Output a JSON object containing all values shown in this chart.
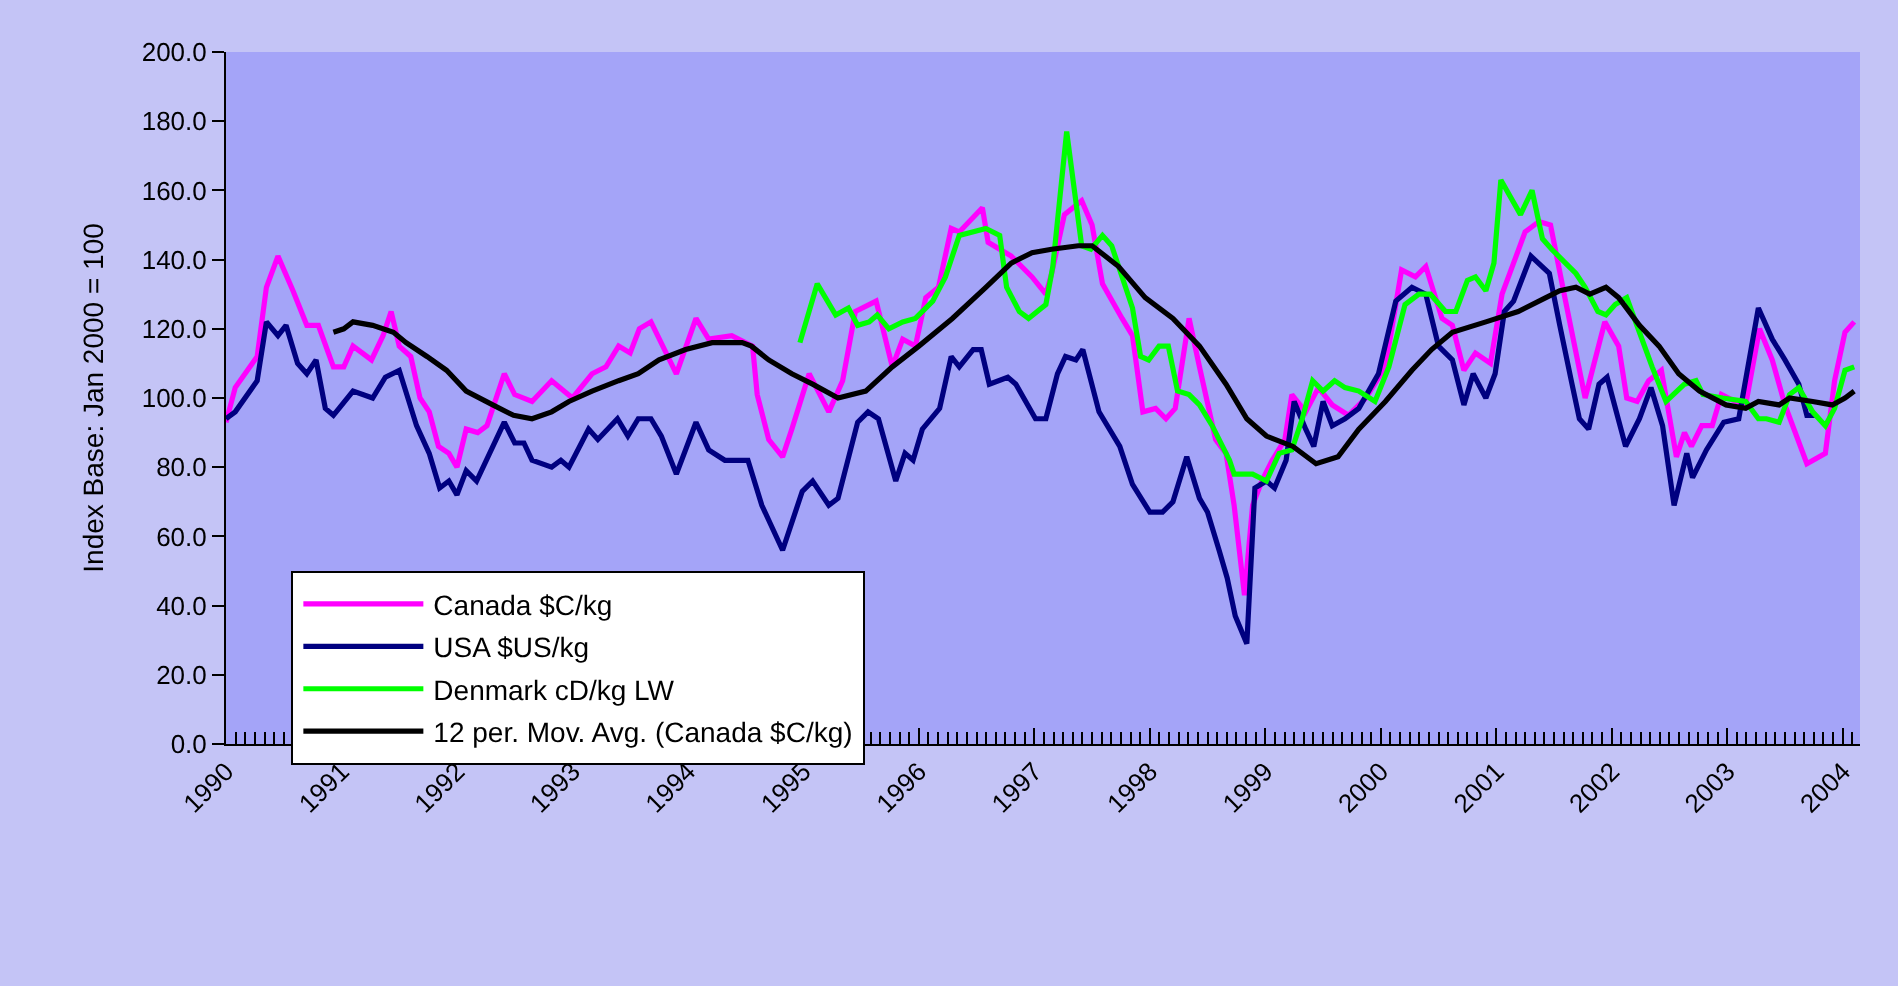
{
  "chart_data": {
    "type": "line",
    "ylabel": "Index Base: Jan 2000 = 100",
    "xlim": [
      1990,
      2004.15
    ],
    "xticks": [
      1990,
      1991,
      1992,
      1993,
      1994,
      1995,
      1996,
      1997,
      1998,
      1999,
      2000,
      2001,
      2002,
      2003,
      2004
    ],
    "ylim": [
      0,
      200
    ],
    "yticks": [
      {
        "value": 0,
        "label": "0.0"
      },
      {
        "value": 20,
        "label": "20.0"
      },
      {
        "value": 40,
        "label": "40.0"
      },
      {
        "value": 60,
        "label": "60.0"
      },
      {
        "value": 80,
        "label": "80.0"
      },
      {
        "value": 100,
        "label": "100.0"
      },
      {
        "value": 120,
        "label": "120.0"
      },
      {
        "value": 140,
        "label": "140.0"
      },
      {
        "value": 160,
        "label": "160.0"
      },
      {
        "value": 180,
        "label": "180.0"
      },
      {
        "value": 200,
        "label": "200.0"
      }
    ],
    "grid": false,
    "legend": "bottom left",
    "marker": "none",
    "line_style": "solid",
    "series": [
      {
        "name": "Canada $C/kg",
        "color": "#ff00ff",
        "x": [
          1990.0,
          1990.08,
          1990.27,
          1990.35,
          1990.45,
          1990.58,
          1990.7,
          1990.8,
          1990.93,
          1991.02,
          1991.1,
          1991.26,
          1991.36,
          1991.43,
          1991.5,
          1991.6,
          1991.68,
          1991.76,
          1991.84,
          1991.93,
          1992.0,
          1992.08,
          1992.18,
          1992.26,
          1992.41,
          1992.5,
          1992.65,
          1992.82,
          1993.0,
          1993.17,
          1993.29,
          1993.4,
          1993.5,
          1993.58,
          1993.68,
          1993.9,
          1994.07,
          1994.18,
          1994.38,
          1994.56,
          1994.6,
          1994.7,
          1994.82,
          1994.9,
          1995.05,
          1995.22,
          1995.34,
          1995.45,
          1995.63,
          1995.77,
          1995.86,
          1995.97,
          1996.06,
          1996.17,
          1996.28,
          1996.35,
          1996.55,
          1996.6,
          1996.8,
          1996.98,
          1997.1,
          1997.15,
          1997.26,
          1997.41,
          1997.5,
          1997.59,
          1997.76,
          1997.85,
          1997.94,
          1998.05,
          1998.14,
          1998.22,
          1998.34,
          1998.43,
          1998.57,
          1998.66,
          1998.73,
          1998.82,
          1998.89,
          1998.97,
          1999.06,
          1999.17,
          1999.23,
          1999.35,
          1999.46,
          1999.58,
          1999.72,
          1999.87,
          2000.04,
          2000.18,
          2000.3,
          2000.39,
          2000.53,
          2000.62,
          2000.72,
          2000.82,
          2000.95,
          2001.05,
          2001.25,
          2001.37,
          2001.47,
          2001.6,
          2001.77,
          2001.94,
          2002.06,
          2002.13,
          2002.22,
          2002.32,
          2002.43,
          2002.56,
          2002.63,
          2002.69,
          2002.78,
          2002.87,
          2002.95,
          2003.07,
          2003.16,
          2003.28,
          2003.39,
          2003.5,
          2003.69,
          2003.85,
          2003.93,
          2004.02,
          2004.1
        ],
        "values": [
          93,
          103,
          112,
          132,
          141,
          131,
          121,
          121,
          109,
          109,
          115,
          111,
          118,
          125,
          115,
          112,
          100,
          96,
          86,
          84,
          80,
          91,
          90,
          92,
          107,
          101,
          99,
          105,
          100,
          107,
          109,
          115,
          113,
          120,
          122,
          107,
          123,
          117,
          118,
          115,
          101,
          88,
          83,
          91,
          107,
          96,
          105,
          125,
          128,
          109,
          117,
          115,
          129,
          132,
          149,
          148,
          155,
          145,
          141,
          135,
          130,
          136,
          153,
          157,
          150,
          133,
          123,
          118,
          96,
          97,
          94,
          97,
          123,
          109,
          88,
          84,
          69,
          43,
          69,
          76,
          82,
          88,
          101,
          96,
          103,
          98,
          95,
          100,
          109,
          137,
          135,
          138,
          123,
          121,
          108,
          113,
          110,
          130,
          148,
          151,
          150,
          128,
          100,
          122,
          115,
          100,
          99,
          105,
          108,
          83,
          90,
          86,
          92,
          92,
          101,
          99,
          98,
          120,
          111,
          98,
          81,
          84,
          105,
          119,
          122
        ]
      },
      {
        "name": "USA $US/kg",
        "color": "#000080",
        "x": [
          1990.0,
          1990.08,
          1990.27,
          1990.35,
          1990.45,
          1990.52,
          1990.62,
          1990.7,
          1990.78,
          1990.86,
          1990.93,
          1991.1,
          1991.27,
          1991.38,
          1991.5,
          1991.65,
          1991.76,
          1991.85,
          1991.93,
          1992.0,
          1992.08,
          1992.17,
          1992.41,
          1992.5,
          1992.58,
          1992.65,
          1992.82,
          1992.9,
          1992.97,
          1993.14,
          1993.22,
          1993.39,
          1993.48,
          1993.57,
          1993.68,
          1993.77,
          1993.9,
          1994.07,
          1994.18,
          1994.32,
          1994.52,
          1994.64,
          1994.82,
          1994.99,
          1995.08,
          1995.22,
          1995.3,
          1995.47,
          1995.56,
          1995.65,
          1995.8,
          1995.88,
          1995.95,
          1996.03,
          1996.18,
          1996.28,
          1996.35,
          1996.47,
          1996.54,
          1996.61,
          1996.77,
          1996.84,
          1997.01,
          1997.1,
          1997.2,
          1997.27,
          1997.36,
          1997.42,
          1997.56,
          1997.74,
          1997.85,
          1998.0,
          1998.11,
          1998.2,
          1998.32,
          1998.43,
          1998.5,
          1998.6,
          1998.67,
          1998.74,
          1998.84,
          1998.91,
          1999.01,
          1999.08,
          1999.18,
          1999.25,
          1999.35,
          1999.42,
          1999.5,
          1999.58,
          1999.69,
          1999.81,
          1999.98,
          2000.13,
          2000.27,
          2000.39,
          2000.5,
          2000.62,
          2000.72,
          2000.8,
          2000.91,
          2000.99,
          2001.07,
          2001.15,
          2001.3,
          2001.46,
          2001.55,
          2001.65,
          2001.72,
          2001.8,
          2001.89,
          2001.96,
          2002.12,
          2002.24,
          2002.34,
          2002.44,
          2002.54,
          2002.65,
          2002.7,
          2002.82,
          2002.97,
          2003.1,
          2003.27,
          2003.39,
          2003.5,
          2003.62,
          2003.69,
          2003.76
        ],
        "values": [
          94,
          96,
          105,
          122,
          118,
          121,
          110,
          107,
          111,
          97,
          95,
          102,
          100,
          106,
          108,
          92,
          84,
          74,
          76,
          72,
          79,
          76,
          93,
          87,
          87,
          82,
          80,
          82,
          80,
          91,
          88,
          94,
          89,
          94,
          94,
          89,
          78,
          93,
          85,
          82,
          82,
          69,
          56,
          73,
          76,
          69,
          71,
          93,
          96,
          94,
          76,
          84,
          82,
          91,
          97,
          112,
          109,
          114,
          114,
          104,
          106,
          104,
          94,
          94,
          107,
          112,
          111,
          114,
          96,
          86,
          75,
          67,
          67,
          70,
          83,
          71,
          67,
          56,
          48,
          37,
          29,
          74,
          76,
          74,
          82,
          99,
          91,
          86,
          99,
          92,
          94,
          97,
          107,
          128,
          132,
          130,
          115,
          111,
          98,
          107,
          100,
          107,
          125,
          128,
          141,
          136,
          121,
          105,
          94,
          91,
          104,
          106,
          86,
          94,
          103,
          92,
          69,
          84,
          77,
          85,
          93,
          94,
          126,
          117,
          111,
          104,
          95,
          95
        ]
      },
      {
        "name": "Denmark cD/kg LW",
        "color": "#00ff00",
        "x": [
          1994.97,
          1995.12,
          1995.28,
          1995.39,
          1995.47,
          1995.57,
          1995.64,
          1995.74,
          1995.86,
          1995.97,
          1996.12,
          1996.23,
          1996.35,
          1996.58,
          1996.7,
          1996.76,
          1996.87,
          1996.95,
          1997.1,
          1997.16,
          1997.28,
          1997.41,
          1997.49,
          1997.59,
          1997.67,
          1997.85,
          1997.92,
          1997.99,
          1998.08,
          1998.16,
          1998.24,
          1998.34,
          1998.43,
          1998.54,
          1998.69,
          1998.73,
          1998.89,
          1999.01,
          1999.12,
          1999.23,
          1999.32,
          1999.41,
          1999.5,
          1999.6,
          1999.69,
          1999.81,
          1999.95,
          2000.07,
          2000.21,
          2000.33,
          2000.43,
          2000.56,
          2000.65,
          2000.75,
          2000.82,
          2000.91,
          2000.98,
          2001.04,
          2001.21,
          2001.31,
          2001.4,
          2001.48,
          2001.6,
          2001.69,
          2001.77,
          2001.88,
          2001.95,
          2002.03,
          2002.13,
          2002.24,
          2002.35,
          2002.47,
          2002.63,
          2002.73,
          2002.79,
          2002.96,
          2003.16,
          2003.27,
          2003.34,
          2003.45,
          2003.54,
          2003.62,
          2003.74,
          2003.85,
          2003.93,
          2004.02,
          2004.1
        ],
        "values": [
          116,
          133,
          124,
          126,
          121,
          122,
          124,
          120,
          122,
          123,
          128,
          135,
          147,
          149,
          147,
          132,
          125,
          123,
          127,
          138,
          177,
          144,
          143,
          147,
          144,
          126,
          112,
          111,
          115,
          115,
          102,
          101,
          98,
          92,
          82,
          78,
          78,
          76,
          84,
          85,
          94,
          105,
          102,
          105,
          103,
          102,
          99,
          109,
          127,
          130,
          130,
          125,
          125,
          134,
          135,
          131,
          139,
          163,
          153,
          160,
          146,
          143,
          139,
          136,
          132,
          125,
          124,
          127,
          129,
          119,
          109,
          99,
          104,
          105,
          101,
          100,
          99,
          94,
          94,
          93,
          101,
          103,
          96,
          92,
          97,
          108,
          109
        ]
      },
      {
        "name": "12 per. Mov. Avg. (Canada $C/kg)",
        "color": "#000000",
        "x": [
          1990.93,
          1991.02,
          1991.1,
          1991.27,
          1991.45,
          1991.56,
          1991.74,
          1991.91,
          1992.08,
          1992.31,
          1992.49,
          1992.65,
          1992.82,
          1992.97,
          1993.17,
          1993.4,
          1993.57,
          1993.75,
          1993.98,
          1994.21,
          1994.47,
          1994.55,
          1994.7,
          1994.9,
          1995.08,
          1995.3,
          1995.54,
          1995.77,
          1996.0,
          1996.29,
          1996.58,
          1996.8,
          1996.98,
          1997.15,
          1997.38,
          1997.5,
          1997.73,
          1997.96,
          1998.2,
          1998.43,
          1998.66,
          1998.84,
          1999.01,
          1999.24,
          1999.44,
          1999.63,
          1999.81,
          2000.04,
          2000.27,
          2000.44,
          2000.62,
          2000.91,
          2001.19,
          2001.43,
          2001.55,
          2001.69,
          2001.81,
          2001.95,
          2002.06,
          2002.24,
          2002.41,
          2002.58,
          2002.76,
          2002.99,
          2003.16,
          2003.27,
          2003.45,
          2003.54,
          2003.74,
          2003.91,
          2004.02,
          2004.1
        ],
        "values": [
          119,
          120,
          122,
          121,
          119,
          116,
          112,
          108,
          102,
          98,
          95,
          94,
          96,
          99,
          102,
          105,
          107,
          111,
          114,
          116,
          116,
          115,
          111,
          107,
          104,
          100,
          102,
          109,
          115,
          123,
          132,
          139,
          142,
          143,
          144,
          144,
          138,
          129,
          123,
          115,
          104,
          94,
          89,
          86,
          81,
          83,
          91,
          99,
          108,
          114,
          119,
          122,
          125,
          129,
          131,
          132,
          130,
          132,
          129,
          121,
          115,
          107,
          102,
          98,
          97,
          99,
          98,
          100,
          99,
          98,
          100,
          102
        ]
      }
    ]
  }
}
